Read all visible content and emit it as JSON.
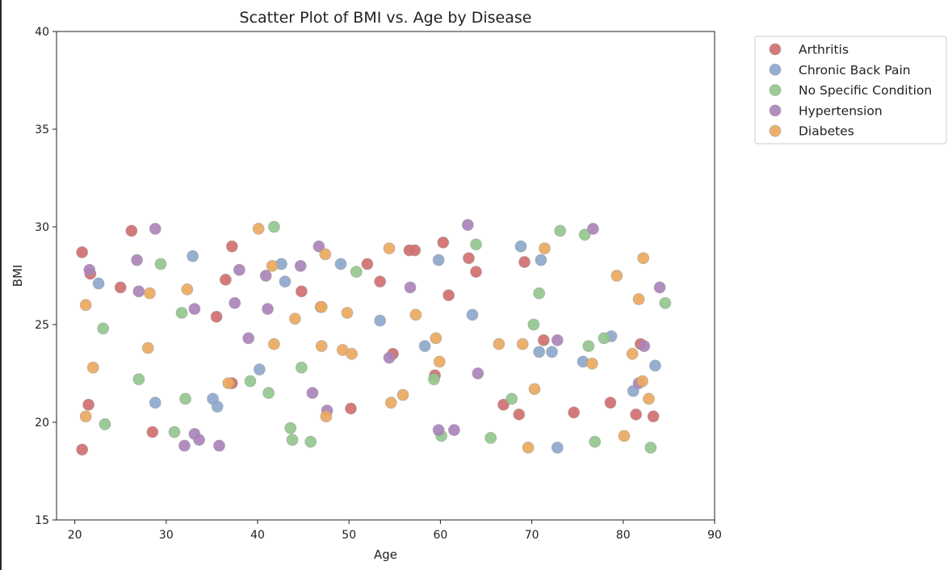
{
  "chart_data": {
    "type": "scatter",
    "title": "Scatter Plot of BMI vs. Age by Disease",
    "xlabel": "Age",
    "ylabel": "BMI",
    "xlim": [
      18,
      90
    ],
    "ylim": [
      15,
      40
    ],
    "xticks": [
      20,
      30,
      40,
      50,
      60,
      70,
      80,
      90
    ],
    "yticks": [
      15,
      20,
      25,
      30,
      35,
      40
    ],
    "grid": false,
    "legend_position": "outside-top-right",
    "series": [
      {
        "name": "Arthritis",
        "color": "#d16f6f",
        "points": [
          [
            20.8,
            28.7
          ],
          [
            21.7,
            27.6
          ],
          [
            20.8,
            18.6
          ],
          [
            21.5,
            20.9
          ],
          [
            25.0,
            26.9
          ],
          [
            26.2,
            29.8
          ],
          [
            28.5,
            19.5
          ],
          [
            35.5,
            25.4
          ],
          [
            36.5,
            27.3
          ],
          [
            37.2,
            29.0
          ],
          [
            37.2,
            22.0
          ],
          [
            44.8,
            26.7
          ],
          [
            50.2,
            20.7
          ],
          [
            52.0,
            28.1
          ],
          [
            53.4,
            27.2
          ],
          [
            54.8,
            23.5
          ],
          [
            56.6,
            28.8
          ],
          [
            57.2,
            28.8
          ],
          [
            59.4,
            22.4
          ],
          [
            60.3,
            29.2
          ],
          [
            60.9,
            26.5
          ],
          [
            63.1,
            28.4
          ],
          [
            63.9,
            27.7
          ],
          [
            66.9,
            20.9
          ],
          [
            68.6,
            20.4
          ],
          [
            69.2,
            28.2
          ],
          [
            71.3,
            24.2
          ],
          [
            74.6,
            20.5
          ],
          [
            78.6,
            21.0
          ],
          [
            81.4,
            20.4
          ],
          [
            81.9,
            24.0
          ],
          [
            83.3,
            20.3
          ]
        ]
      },
      {
        "name": "Chronic Back Pain",
        "color": "#8da8cd",
        "points": [
          [
            22.6,
            27.1
          ],
          [
            28.8,
            21.0
          ],
          [
            32.9,
            28.5
          ],
          [
            35.1,
            21.2
          ],
          [
            35.6,
            20.8
          ],
          [
            40.2,
            22.7
          ],
          [
            42.6,
            28.1
          ],
          [
            43.0,
            27.2
          ],
          [
            49.1,
            28.1
          ],
          [
            53.4,
            25.2
          ],
          [
            58.3,
            23.9
          ],
          [
            59.8,
            28.3
          ],
          [
            63.5,
            25.5
          ],
          [
            68.8,
            29.0
          ],
          [
            70.8,
            23.6
          ],
          [
            71.0,
            28.3
          ],
          [
            72.2,
            23.6
          ],
          [
            72.8,
            18.7
          ],
          [
            75.6,
            23.1
          ],
          [
            78.7,
            24.4
          ],
          [
            81.1,
            21.6
          ],
          [
            83.5,
            22.9
          ]
        ]
      },
      {
        "name": "No Specific Condition",
        "color": "#92c78d",
        "points": [
          [
            23.1,
            24.8
          ],
          [
            23.3,
            19.9
          ],
          [
            27.0,
            22.2
          ],
          [
            29.4,
            28.1
          ],
          [
            30.9,
            19.5
          ],
          [
            31.7,
            25.6
          ],
          [
            32.1,
            21.2
          ],
          [
            39.2,
            22.1
          ],
          [
            41.2,
            21.5
          ],
          [
            41.8,
            30.0
          ],
          [
            43.6,
            19.7
          ],
          [
            43.8,
            19.1
          ],
          [
            44.8,
            22.8
          ],
          [
            45.8,
            19.0
          ],
          [
            50.8,
            27.7
          ],
          [
            59.3,
            22.2
          ],
          [
            60.1,
            19.3
          ],
          [
            63.9,
            29.1
          ],
          [
            65.5,
            19.2
          ],
          [
            67.8,
            21.2
          ],
          [
            70.2,
            25.0
          ],
          [
            70.8,
            26.6
          ],
          [
            73.1,
            29.8
          ],
          [
            75.8,
            29.6
          ],
          [
            76.2,
            23.9
          ],
          [
            76.9,
            19.0
          ],
          [
            77.9,
            24.3
          ],
          [
            83.0,
            18.7
          ],
          [
            84.6,
            26.1
          ]
        ]
      },
      {
        "name": "Hypertension",
        "color": "#ab83ba",
        "points": [
          [
            21.6,
            27.8
          ],
          [
            26.8,
            28.3
          ],
          [
            27.0,
            26.7
          ],
          [
            28.8,
            29.9
          ],
          [
            32.0,
            18.8
          ],
          [
            33.1,
            25.8
          ],
          [
            33.1,
            19.4
          ],
          [
            33.6,
            19.1
          ],
          [
            35.8,
            18.8
          ],
          [
            37.5,
            26.1
          ],
          [
            38.0,
            27.8
          ],
          [
            39.0,
            24.3
          ],
          [
            40.9,
            27.5
          ],
          [
            41.1,
            25.8
          ],
          [
            44.7,
            28.0
          ],
          [
            46.0,
            21.5
          ],
          [
            46.7,
            29.0
          ],
          [
            47.6,
            20.6
          ],
          [
            54.4,
            23.3
          ],
          [
            56.7,
            26.9
          ],
          [
            59.8,
            19.6
          ],
          [
            61.5,
            19.6
          ],
          [
            63.0,
            30.1
          ],
          [
            64.1,
            22.5
          ],
          [
            72.8,
            24.2
          ],
          [
            76.7,
            29.9
          ],
          [
            81.7,
            22.0
          ],
          [
            82.3,
            23.9
          ],
          [
            84.0,
            26.9
          ]
        ]
      },
      {
        "name": "Diabetes",
        "color": "#eca95f",
        "points": [
          [
            21.2,
            26.0
          ],
          [
            21.2,
            20.3
          ],
          [
            22.0,
            22.8
          ],
          [
            28.0,
            23.8
          ],
          [
            28.2,
            26.6
          ],
          [
            32.3,
            26.8
          ],
          [
            36.8,
            22.0
          ],
          [
            40.1,
            29.9
          ],
          [
            41.6,
            28.0
          ],
          [
            41.8,
            24.0
          ],
          [
            44.1,
            25.3
          ],
          [
            46.9,
            25.9
          ],
          [
            47.0,
            25.9
          ],
          [
            47.0,
            23.9
          ],
          [
            47.4,
            28.6
          ],
          [
            47.5,
            20.3
          ],
          [
            49.3,
            23.7
          ],
          [
            49.8,
            25.6
          ],
          [
            50.3,
            23.5
          ],
          [
            54.4,
            28.9
          ],
          [
            54.6,
            21.0
          ],
          [
            55.9,
            21.4
          ],
          [
            57.3,
            25.5
          ],
          [
            59.5,
            24.3
          ],
          [
            59.9,
            23.1
          ],
          [
            66.4,
            24.0
          ],
          [
            69.0,
            24.0
          ],
          [
            69.6,
            18.7
          ],
          [
            70.3,
            21.7
          ],
          [
            71.4,
            28.9
          ],
          [
            76.6,
            23.0
          ],
          [
            79.3,
            27.5
          ],
          [
            80.1,
            19.3
          ],
          [
            81.0,
            23.5
          ],
          [
            81.7,
            26.3
          ],
          [
            82.1,
            22.1
          ],
          [
            82.2,
            28.4
          ],
          [
            82.8,
            21.2
          ]
        ]
      }
    ]
  }
}
